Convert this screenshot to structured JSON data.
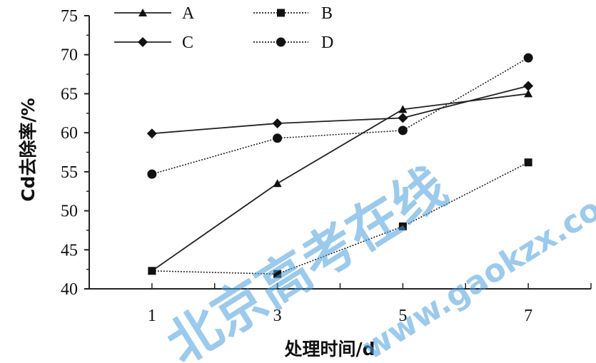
{
  "chart_data": {
    "type": "line",
    "title": "",
    "xlabel": "处理时间/d",
    "ylabel": "Cd去除率/%",
    "x": [
      1,
      3,
      5,
      7
    ],
    "xlim": [
      0,
      8
    ],
    "ylim": [
      40,
      75
    ],
    "xticks": [
      "1",
      "3",
      "5",
      "7"
    ],
    "yticks": [
      "40",
      "45",
      "50",
      "55",
      "60",
      "65",
      "70",
      "75"
    ],
    "legend_position": "top",
    "grid": false,
    "series": [
      {
        "name": "A",
        "values": [
          42.3,
          53.5,
          63.0,
          65.0
        ],
        "marker": "triangle",
        "line": "solid"
      },
      {
        "name": "B",
        "values": [
          42.3,
          41.9,
          48.0,
          56.2
        ],
        "marker": "square",
        "line": "dotted"
      },
      {
        "name": "C",
        "values": [
          59.9,
          61.2,
          61.9,
          66.0
        ],
        "marker": "diamond",
        "line": "solid"
      },
      {
        "name": "D",
        "values": [
          54.7,
          59.3,
          60.3,
          69.6
        ],
        "marker": "circle",
        "line": "dotted"
      }
    ]
  },
  "watermark": {
    "text_cn": "北京高考在线",
    "text_url": "www.gaokzx.com",
    "color": "#4a9fe0"
  }
}
